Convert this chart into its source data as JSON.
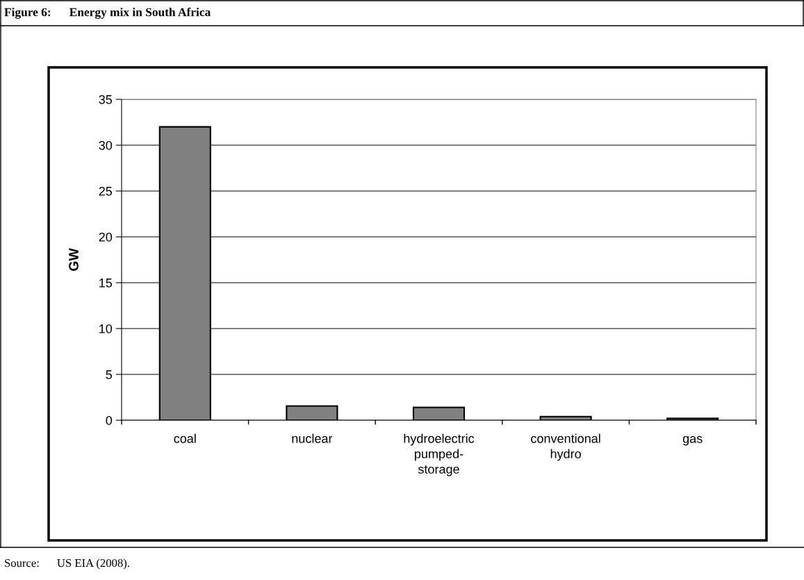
{
  "chart_data": {
    "type": "bar",
    "title": "Figure 6:      Energy mix in South Africa",
    "ylabel": "GW",
    "categories": [
      "coal",
      "nuclear",
      "hydroelectric\npumped-\nstorage",
      "conventional\nhydro",
      "gas"
    ],
    "values": [
      32.0,
      1.55,
      1.4,
      0.4,
      0.2
    ],
    "color": "#808080",
    "ylim": [
      0,
      35
    ],
    "yticks": [
      0,
      5,
      10,
      15,
      20,
      25,
      30,
      35
    ],
    "grid": "y",
    "annotations": [
      "Source:      US EIA (2008)."
    ]
  }
}
